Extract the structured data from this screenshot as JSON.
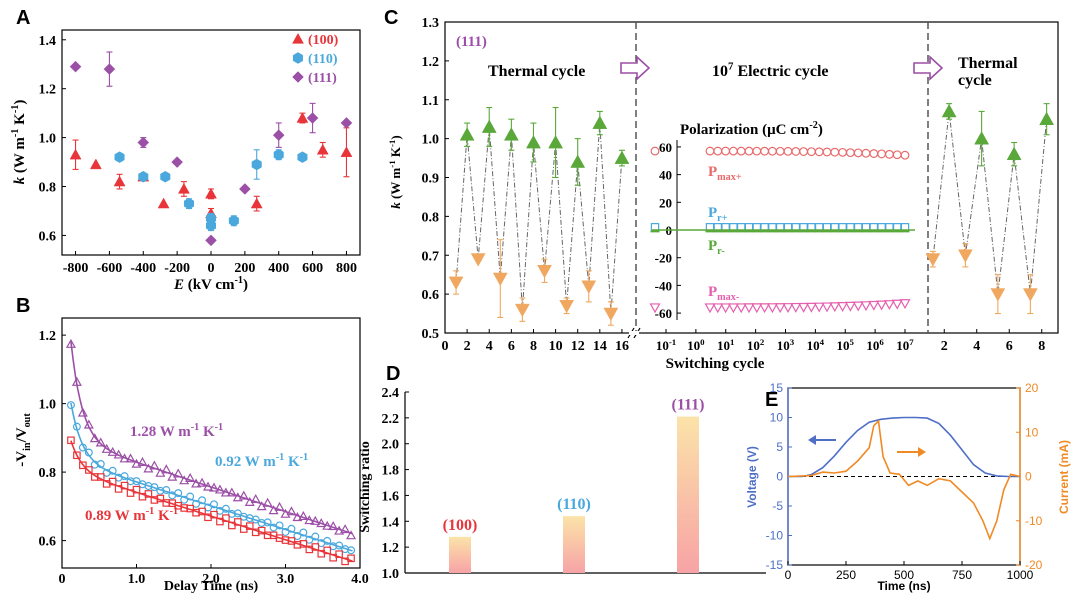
{
  "colors": {
    "red": "#e8353a",
    "blue": "#4aa8dd",
    "purple": "#9b4fa6",
    "green": "#5aa83a",
    "orange": "#f0a860",
    "pink": "#e55fae",
    "salmon": "#e86a6a",
    "voltage": "#4f6fc6",
    "current": "#f08a24",
    "black": "#000000"
  },
  "chart_data": [
    {
      "panel": "A",
      "type": "scatter",
      "xlabel_main": "E",
      "xlabel_unit": " (kV cm",
      "xlabel_sup": "-1",
      "xlabel_end": ")",
      "ylabel_main": "k",
      "ylabel_unit": " (W m",
      "ylabel_sup1": "-1",
      "ylabel_mid": " K",
      "ylabel_sup2": "-1",
      "ylabel_end": ")",
      "xlim": [
        -880,
        880
      ],
      "ylim": [
        0.52,
        1.44
      ],
      "xticks": [
        -800,
        -600,
        -400,
        -200,
        0,
        200,
        400,
        600,
        800
      ],
      "yticks": [
        0.6,
        0.8,
        1.0,
        1.2,
        1.4
      ],
      "xtick_labels": [
        "-800",
        "-600",
        "-400",
        "-200",
        "0",
        "200",
        "400",
        "600",
        "800"
      ],
      "ytick_labels": [
        "0.6",
        "0.8",
        "1.0",
        "1.2",
        "1.4"
      ],
      "series": [
        {
          "name": "(100)",
          "marker": "triangle",
          "color": "#e8353a",
          "x": [
            -800,
            -680,
            -540,
            -400,
            -280,
            -160,
            0,
            0,
            270,
            540,
            660,
            800
          ],
          "y": [
            0.93,
            0.89,
            0.82,
            0.84,
            0.73,
            0.79,
            0.77,
            0.69,
            0.73,
            1.08,
            0.95,
            0.94
          ],
          "err": [
            0.06,
            0.0,
            0.03,
            0.0,
            0.0,
            0.03,
            0.02,
            0.02,
            0.03,
            0.02,
            0.03,
            0.1
          ]
        },
        {
          "name": "(110)",
          "marker": "hexagon",
          "color": "#4aa8dd",
          "x": [
            -540,
            -400,
            -270,
            -130,
            0,
            0,
            135,
            270,
            400,
            540
          ],
          "y": [
            0.92,
            0.84,
            0.84,
            0.73,
            0.67,
            0.64,
            0.66,
            0.89,
            0.93,
            0.92
          ],
          "err": [
            0.0,
            0.0,
            0.0,
            0.02,
            0.02,
            0.02,
            0.02,
            0.06,
            0.02,
            0.0
          ]
        },
        {
          "name": "(111)",
          "marker": "diamond",
          "color": "#9b4fa6",
          "x": [
            -800,
            -600,
            -400,
            -200,
            0,
            200,
            400,
            600,
            800
          ],
          "y": [
            1.29,
            1.28,
            0.98,
            0.9,
            0.58,
            0.79,
            1.01,
            1.08,
            1.06
          ],
          "err": [
            0.0,
            0.07,
            0.02,
            0.0,
            0.0,
            0.0,
            0.05,
            0.06,
            0.0
          ]
        }
      ]
    },
    {
      "panel": "B",
      "type": "line",
      "xlabel": "Delay Time (ns)",
      "ylabel_main": "-V",
      "ylabel_sub1": "in",
      "ylabel_mid": "/V",
      "ylabel_sub2": "out",
      "xlim": [
        0,
        4.0
      ],
      "ylim": [
        0.52,
        1.25
      ],
      "xticks": [
        0,
        1.0,
        2.0,
        3.0,
        4.0
      ],
      "yticks": [
        0.6,
        0.8,
        1.0,
        1.2
      ],
      "xtick_labels": [
        "0",
        "1.0",
        "2.0",
        "3.0",
        "4.0"
      ],
      "ytick_labels": [
        "0.6",
        "0.8",
        "1.0",
        "1.2"
      ],
      "series": [
        {
          "name": "(111)",
          "marker": "open-triangle",
          "color": "#9b4fa6",
          "y0": 1.19,
          "plateau": 0.9,
          "end": 0.62,
          "label": "1.28 W m",
          "label_sup1": "-1",
          "label_mid": " K",
          "label_sup2": "-1"
        },
        {
          "name": "(110)",
          "marker": "open-circle",
          "color": "#4aa8dd",
          "y0": 1.01,
          "plateau": 0.84,
          "end": 0.57,
          "label": "0.92 W m",
          "label_sup1": "-1",
          "label_mid": " K",
          "label_sup2": "-1"
        },
        {
          "name": "(100)",
          "marker": "open-square",
          "color": "#e8353a",
          "y0": 0.9,
          "plateau": 0.81,
          "end": 0.54,
          "label": "0.89 W m",
          "label_sup1": "-1",
          "label_mid": " K",
          "label_sup2": "-1"
        }
      ]
    },
    {
      "panel": "C",
      "type": "line",
      "ylabel_main": "k",
      "ylabel_unit": " (W m",
      "ylabel_sup1": "-1",
      "ylabel_mid": " K",
      "ylabel_sup2": "-1",
      "ylabel_end": ")",
      "xlabel": "Switching cycle",
      "tag": "(111)",
      "section1_title": "Thermal cycle",
      "section2_title": "10",
      "section2_sup": "7",
      "section2_rest": " Electric cycle",
      "section3_title1": "Thermal",
      "section3_title2": "cycle",
      "ylim": [
        0.5,
        1.3
      ],
      "yticks": [
        0.5,
        0.6,
        0.7,
        0.8,
        0.9,
        1.0,
        1.1,
        1.2,
        1.3
      ],
      "ytick_labels": [
        "0.5",
        "0.6",
        "0.7",
        "0.8",
        "0.9",
        "1.0",
        "1.1",
        "1.2",
        "1.3"
      ],
      "left_xlim": [
        0,
        17
      ],
      "left_xticks": [
        0,
        2,
        4,
        6,
        8,
        10,
        12,
        14,
        16
      ],
      "left_xtick_labels": [
        "0",
        "2",
        "4",
        "6",
        "8",
        "10",
        "12",
        "14",
        "16"
      ],
      "right_xlim": [
        1,
        9
      ],
      "right_xticks": [
        2,
        4,
        6,
        8
      ],
      "right_xtick_labels": [
        "2",
        "4",
        "6",
        "8"
      ],
      "thermal_left": {
        "high_x": [
          2,
          4,
          6,
          8,
          10,
          12,
          14,
          16
        ],
        "high_y": [
          1.01,
          1.03,
          1.01,
          0.99,
          0.99,
          0.94,
          1.04,
          0.95
        ],
        "high_err": [
          0.03,
          0.05,
          0.04,
          0.05,
          0.09,
          0.06,
          0.03,
          0.02
        ],
        "low_x": [
          1,
          3,
          5,
          7,
          9,
          11,
          13,
          15
        ],
        "low_y": [
          0.63,
          0.69,
          0.64,
          0.56,
          0.66,
          0.57,
          0.62,
          0.55
        ],
        "low_err": [
          0.03,
          0.0,
          0.1,
          0.03,
          0.03,
          0.02,
          0.04,
          0.03
        ]
      },
      "thermal_right": {
        "high_x": [
          2.3,
          4.3,
          6.3,
          8.3
        ],
        "high_y": [
          1.07,
          1.0,
          0.96,
          1.05
        ],
        "high_err": [
          0.02,
          0.07,
          0.03,
          0.04
        ],
        "low_x": [
          1.3,
          3.3,
          5.3,
          7.3
        ],
        "low_y": [
          0.69,
          0.7,
          0.6,
          0.6
        ],
        "low_err": [
          0.02,
          0.03,
          0.05,
          0.05
        ]
      },
      "inset": {
        "title": "Polarization (μC cm",
        "title_sup": "-2",
        "title_end": ")",
        "ylim": [
          -65,
          65
        ],
        "yticks": [
          60,
          40,
          20,
          0,
          -20,
          -40,
          -60
        ],
        "ytick_labels": [
          "60",
          "40",
          "20",
          "0",
          "-20",
          "-40",
          "-60"
        ],
        "xtick_exponents": [
          "-1",
          "0",
          "1",
          "2",
          "3",
          "4",
          "5",
          "6",
          "7"
        ],
        "xtick_base": "10",
        "series": [
          {
            "name_main": "P",
            "name_sub": "max+",
            "color": "#e86a6a",
            "marker": "open-circle",
            "value": 57,
            "end": 54
          },
          {
            "name_main": "P",
            "name_sub": "r+",
            "color": "#4aa8dd",
            "marker": "open-square",
            "value": 2,
            "end": 2
          },
          {
            "name_main": "P",
            "name_sub": "r-",
            "color": "#5aa83a",
            "marker": "dash",
            "value": -1,
            "end": -1
          },
          {
            "name_main": "P",
            "name_sub": "max-",
            "color": "#e55fae",
            "marker": "open-triangle-down",
            "value": -56,
            "end": -53
          }
        ]
      }
    },
    {
      "panel": "D",
      "type": "bar",
      "ylabel": "Switching ratio",
      "ylim": [
        1.0,
        2.4
      ],
      "yticks": [
        1.0,
        1.2,
        1.4,
        1.6,
        1.8,
        2.0,
        2.2,
        2.4
      ],
      "ytick_labels": [
        "1.0",
        "1.2",
        "1.4",
        "1.6",
        "1.8",
        "2.0",
        "2.2",
        "2.4"
      ],
      "categories": [
        "(100)",
        "(110)",
        "(111)"
      ],
      "values": [
        1.28,
        1.44,
        2.21
      ],
      "label_colors": [
        "#e8353a",
        "#4aa8dd",
        "#9b4fa6"
      ]
    },
    {
      "panel": "E",
      "type": "line",
      "xlabel": "Time (ns)",
      "ylabel_left": "Voltage (V)",
      "ylabel_right": "Current (mA)",
      "xlim": [
        0,
        1000
      ],
      "ylim_left": [
        -15,
        15
      ],
      "ylim_right": [
        -20,
        20
      ],
      "xticks": [
        0,
        250,
        500,
        750,
        1000
      ],
      "xtick_labels": [
        "0",
        "250",
        "500",
        "750",
        "1000"
      ],
      "yticks_left": [
        -15,
        -10,
        -5,
        0,
        5,
        10,
        15
      ],
      "ytick_left_labels": [
        "-15",
        "-10",
        "-5",
        "0",
        "5",
        "10",
        "15"
      ],
      "yticks_right": [
        -20,
        -10,
        0,
        10,
        20
      ],
      "ytick_right_labels": [
        "-20",
        "-10",
        "0",
        "10",
        "20"
      ],
      "voltage": {
        "t": [
          0,
          60,
          100,
          150,
          200,
          250,
          300,
          350,
          400,
          450,
          500,
          550,
          600,
          650,
          700,
          750,
          800,
          850,
          900,
          950,
          1000
        ],
        "v": [
          0,
          0,
          0.3,
          1.5,
          3.5,
          5.8,
          7.8,
          9.2,
          9.7,
          9.9,
          10.0,
          10.0,
          9.9,
          9.0,
          7.0,
          4.5,
          2.0,
          0.6,
          0.1,
          0,
          0
        ]
      },
      "current": {
        "t": [
          0,
          100,
          150,
          200,
          250,
          300,
          350,
          370,
          390,
          410,
          440,
          480,
          520,
          560,
          600,
          650,
          700,
          750,
          800,
          840,
          870,
          900,
          930,
          960,
          1000
        ],
        "i": [
          0,
          0.2,
          1.0,
          0.8,
          1.2,
          3.5,
          6.5,
          11.5,
          12.5,
          4.5,
          0.8,
          0.5,
          -2.0,
          -1.0,
          -2.0,
          -0.5,
          -1.0,
          -3.5,
          -6.0,
          -10.0,
          -14.0,
          -10.0,
          -3.0,
          0.5,
          0
        ]
      }
    }
  ],
  "panel_letters": [
    "A",
    "B",
    "C",
    "D",
    "E"
  ]
}
